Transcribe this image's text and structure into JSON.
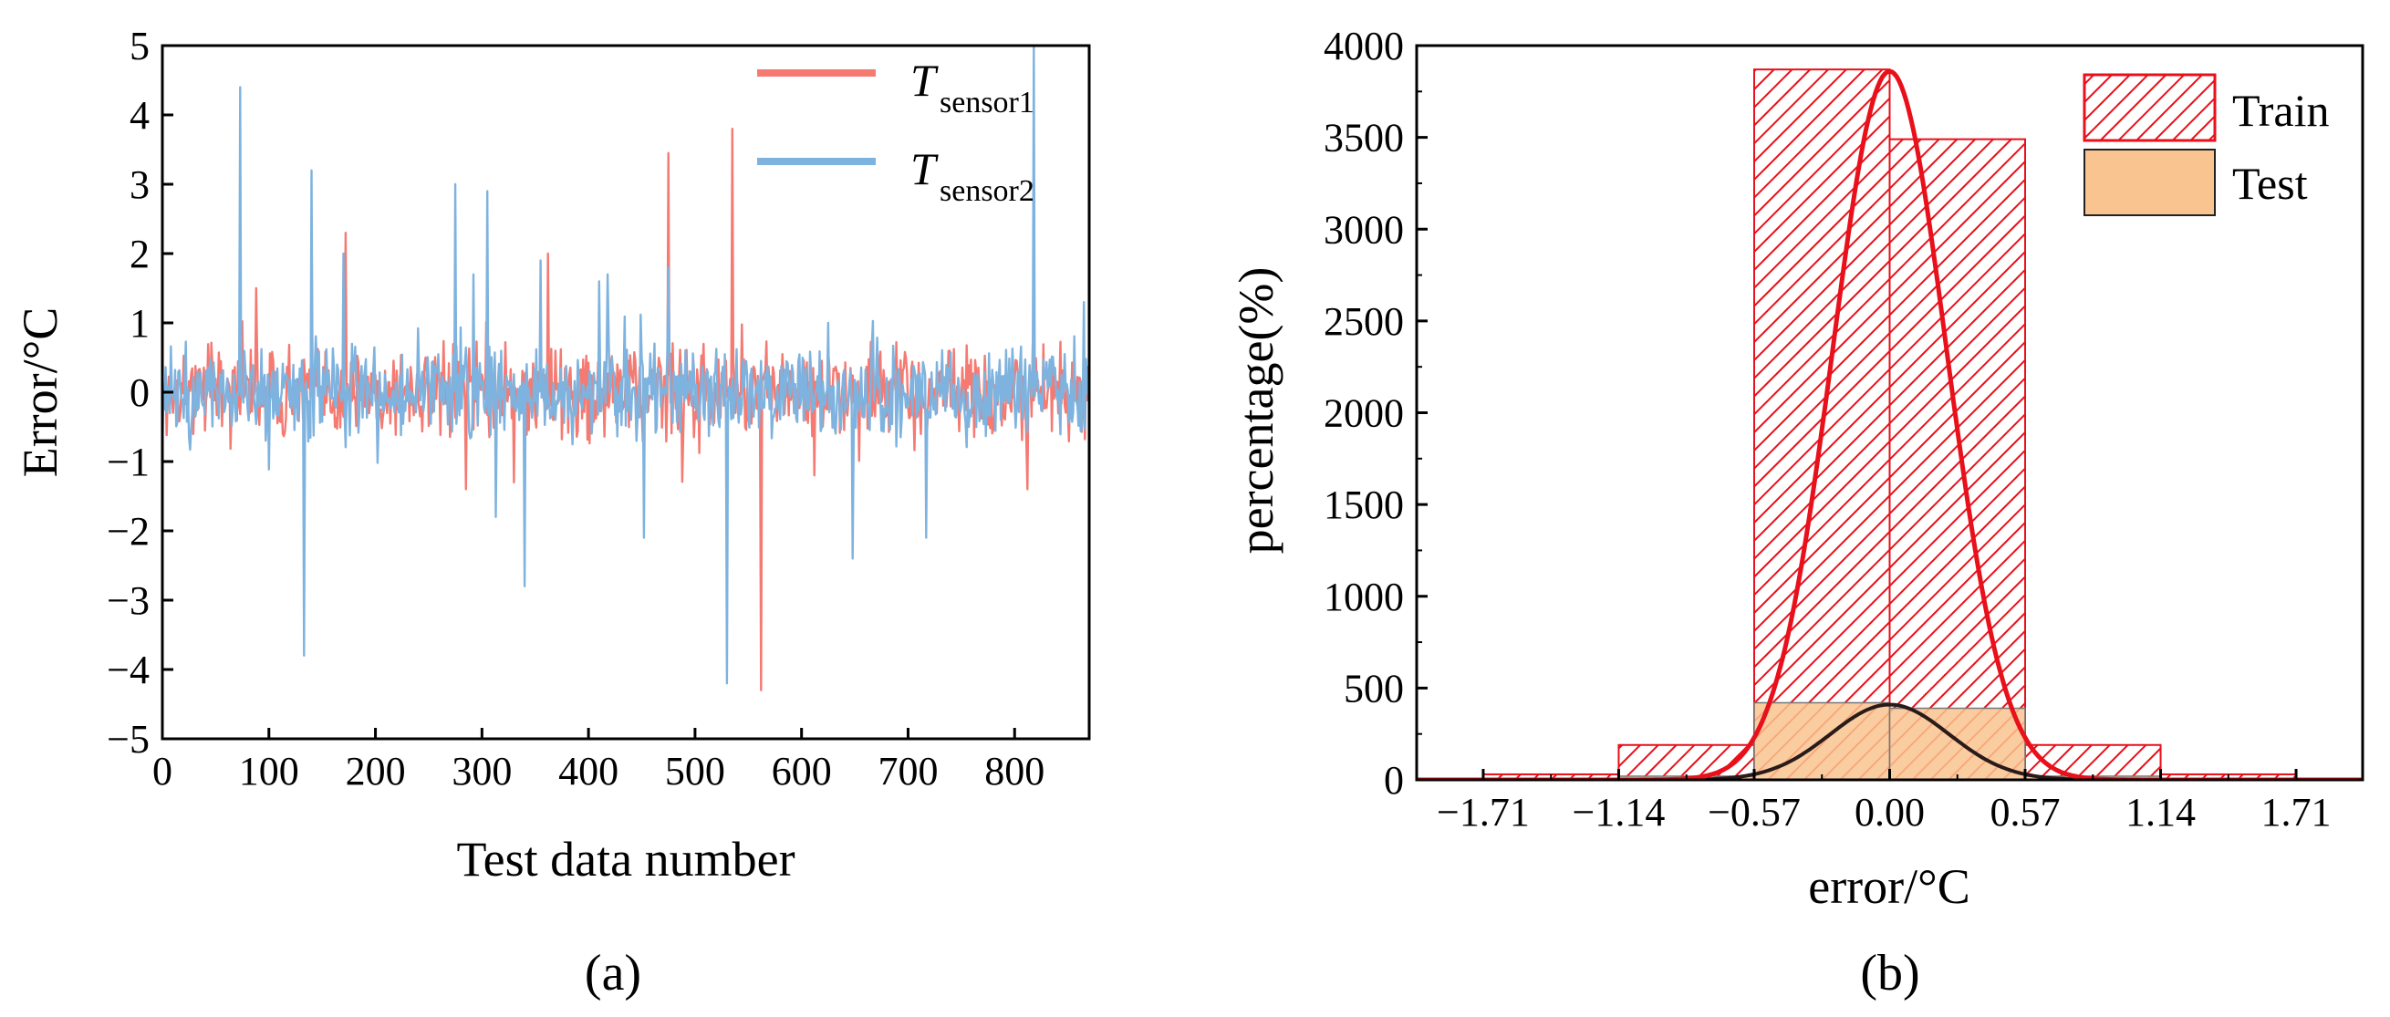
{
  "chart_data": [
    {
      "type": "line",
      "panel_label": "(a)",
      "xlabel": "Test data number",
      "ylabel": "Error/°C",
      "xlim": [
        0,
        870
      ],
      "ylim": [
        -5,
        5
      ],
      "xticks": [
        0,
        100,
        200,
        300,
        400,
        500,
        600,
        700,
        800
      ],
      "yticks": [
        5,
        4,
        3,
        2,
        1,
        0,
        -1,
        -2,
        -3,
        -4,
        -5
      ],
      "ytick_labels": [
        "5",
        "4",
        "3",
        "2",
        "1",
        "0",
        "−1",
        "−2",
        "−3",
        "−4",
        "−5"
      ],
      "n_points": 870,
      "noise_amplitude": 0.3,
      "series": [
        {
          "name": "T_sensor1",
          "label_main": "T",
          "label_sub": "sensor1",
          "color": "#f47a72",
          "spikes": [
            [
              88,
              1.5
            ],
            [
              172,
              2.3
            ],
            [
              285,
              -1.4
            ],
            [
              330,
              -1.3
            ],
            [
              362,
              2.0
            ],
            [
              475,
              3.45
            ],
            [
              535,
              3.8
            ],
            [
              562,
              -4.3
            ],
            [
              612,
              -1.2
            ],
            [
              812,
              -1.4
            ]
          ]
        },
        {
          "name": "T_sensor2",
          "label_main": "T",
          "label_sub": "sensor2",
          "color": "#7eb3df",
          "spikes": [
            [
              73,
              4.4
            ],
            [
              133,
              -3.8
            ],
            [
              140,
              3.2
            ],
            [
              170,
              2.0
            ],
            [
              275,
              3.0
            ],
            [
              292,
              1.7
            ],
            [
              305,
              2.9
            ],
            [
              313,
              -1.8
            ],
            [
              340,
              -2.8
            ],
            [
              355,
              1.9
            ],
            [
              410,
              1.6
            ],
            [
              418,
              1.7
            ],
            [
              452,
              -2.1
            ],
            [
              475,
              1.8
            ],
            [
              530,
              -4.2
            ],
            [
              625,
              1.0
            ],
            [
              648,
              -2.4
            ],
            [
              717,
              -2.1
            ],
            [
              818,
              5.0
            ],
            [
              865,
              1.3
            ]
          ]
        }
      ]
    },
    {
      "type": "histogram",
      "panel_label": "(b)",
      "xlabel": "error/°C",
      "ylabel": "percentage(%)",
      "xlim": [
        -1.99,
        1.99
      ],
      "ylim": [
        0,
        4000
      ],
      "xticks": [
        -1.71,
        -1.14,
        -0.57,
        0.0,
        0.57,
        1.14,
        1.71
      ],
      "xtick_labels": [
        "−1.71",
        "−1.14",
        "−0.57",
        "0.00",
        "0.57",
        "1.14",
        "1.71"
      ],
      "yticks": [
        0,
        500,
        1000,
        1500,
        2000,
        2500,
        3000,
        3500,
        4000
      ],
      "bin_edges": [
        -1.71,
        -1.14,
        -0.57,
        0.0,
        0.57,
        1.14,
        1.71
      ],
      "series": [
        {
          "name": "Train",
          "values": [
            30,
            190,
            3870,
            3490,
            190,
            30
          ],
          "fit_peak": 3860,
          "fit_sigma": 0.24,
          "color": "#e8101a"
        },
        {
          "name": "Test",
          "values": [
            5,
            20,
            420,
            390,
            20,
            5
          ],
          "fit_peak": 410,
          "fit_sigma": 0.25,
          "color": "#f9c48f"
        }
      ],
      "legend": [
        "Train",
        "Test"
      ]
    }
  ]
}
